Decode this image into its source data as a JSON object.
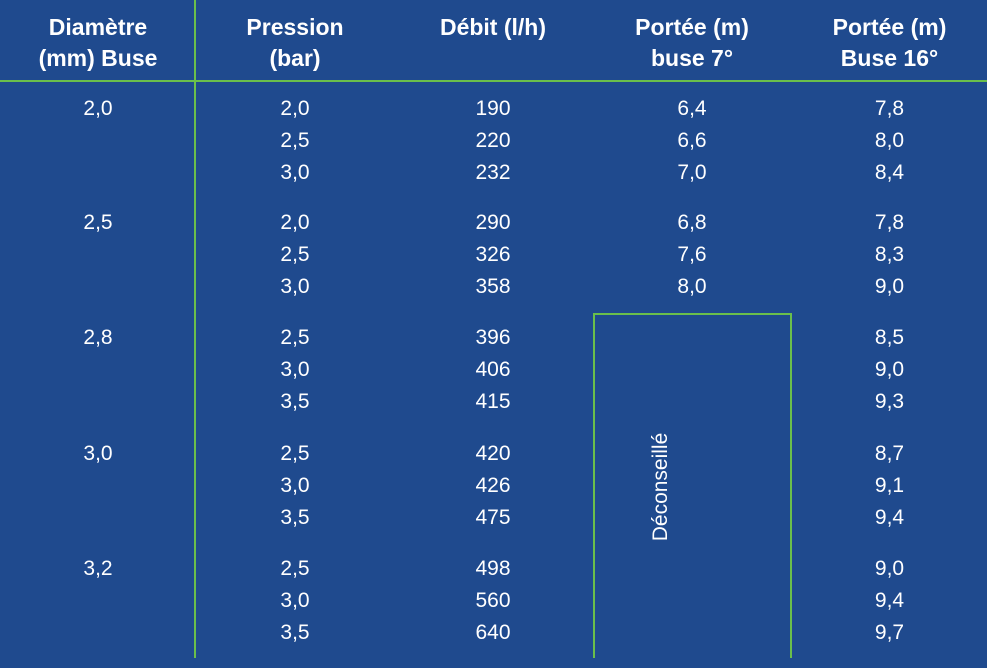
{
  "headers": [
    {
      "line1": "Diamètre",
      "line2": "(mm) Buse"
    },
    {
      "line1": "Pression",
      "line2": "(bar)"
    },
    {
      "line1": "Débit (l/h)",
      "line2": ""
    },
    {
      "line1": "Portée (m)",
      "line2": "buse 7°"
    },
    {
      "line1": "Portée (m)",
      "line2": "Buse 16°"
    }
  ],
  "groups": [
    {
      "diameter": "2,0",
      "rows": [
        {
          "pression": "2,0",
          "debit": "190",
          "portee7": "6,4",
          "portee16": "7,8"
        },
        {
          "pression": "2,5",
          "debit": "220",
          "portee7": "6,6",
          "portee16": "8,0"
        },
        {
          "pression": "3,0",
          "debit": "232",
          "portee7": "7,0",
          "portee16": "8,4"
        }
      ]
    },
    {
      "diameter": "2,5",
      "rows": [
        {
          "pression": "2,0",
          "debit": "290",
          "portee7": "6,8",
          "portee16": "7,8"
        },
        {
          "pression": "2,5",
          "debit": "326",
          "portee7": "7,6",
          "portee16": "8,3"
        },
        {
          "pression": "3,0",
          "debit": "358",
          "portee7": "8,0",
          "portee16": "9,0"
        }
      ]
    },
    {
      "diameter": "2,8",
      "rows": [
        {
          "pression": "2,5",
          "debit": "396",
          "portee7": "",
          "portee16": "8,5"
        },
        {
          "pression": "3,0",
          "debit": "406",
          "portee7": "",
          "portee16": "9,0"
        },
        {
          "pression": "3,5",
          "debit": "415",
          "portee7": "",
          "portee16": "9,3"
        }
      ]
    },
    {
      "diameter": "3,0",
      "rows": [
        {
          "pression": "2,5",
          "debit": "420",
          "portee7": "",
          "portee16": "8,7"
        },
        {
          "pression": "3,0",
          "debit": "426",
          "portee7": "",
          "portee16": "9,1"
        },
        {
          "pression": "3,5",
          "debit": "475",
          "portee7": "",
          "portee16": "9,4"
        }
      ]
    },
    {
      "diameter": "3,2",
      "rows": [
        {
          "pression": "2,5",
          "debit": "498",
          "portee7": "",
          "portee16": "9,0"
        },
        {
          "pression": "3,0",
          "debit": "560",
          "portee7": "",
          "portee16": "9,4"
        },
        {
          "pression": "3,5",
          "debit": "640",
          "portee7": "",
          "portee16": "9,7"
        }
      ]
    }
  ],
  "not_recommended_label": "Déconseillé",
  "colors": {
    "background": "#1f4a8e",
    "grid_line": "#6abf4b",
    "text": "#ffffff"
  }
}
